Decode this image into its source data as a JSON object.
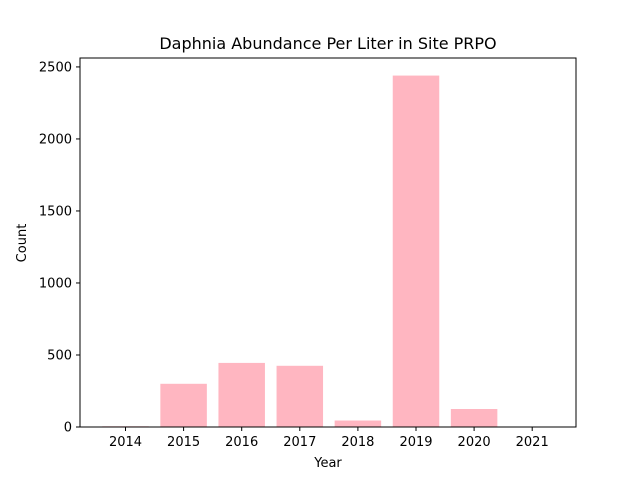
{
  "chart_data": {
    "type": "bar",
    "title": "Daphnia Abundance Per Liter in Site PRPO",
    "xlabel": "Year",
    "ylabel": "Count",
    "categories": [
      "2014",
      "2015",
      "2016",
      "2017",
      "2018",
      "2019",
      "2020",
      "2021"
    ],
    "values": [
      5,
      300,
      445,
      425,
      45,
      2440,
      125,
      0
    ],
    "ylim": [
      0,
      2562
    ],
    "yticks": [
      "0",
      "500",
      "1000",
      "1500",
      "2000",
      "2500"
    ],
    "ytick_values": [
      0,
      500,
      1000,
      1500,
      2000,
      2500
    ],
    "bar_color": "#ffb6c1",
    "grid": false,
    "legend": false
  }
}
